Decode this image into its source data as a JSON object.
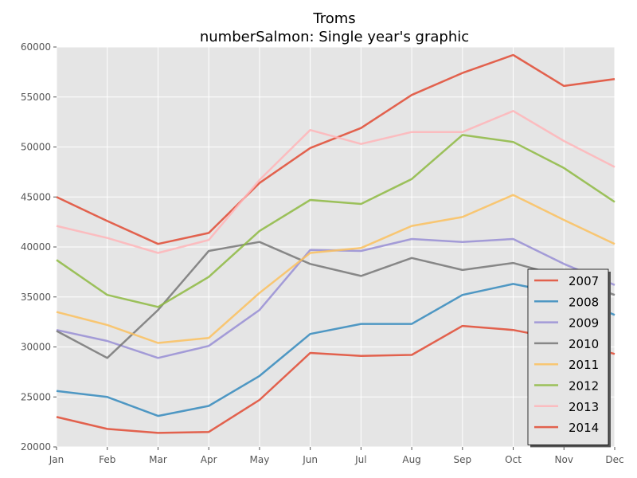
{
  "chart_data": {
    "type": "line",
    "title": "Troms",
    "subtitle": "numberSalmon: Single year's graphic",
    "xlabel": "",
    "ylabel": "",
    "categories": [
      "Jan",
      "Feb",
      "Mar",
      "Apr",
      "May",
      "Jun",
      "Jul",
      "Aug",
      "Sep",
      "Oct",
      "Nov",
      "Dec"
    ],
    "ylim": [
      20000,
      60000
    ],
    "yticks": [
      20000,
      25000,
      30000,
      35000,
      40000,
      45000,
      50000,
      55000,
      60000
    ],
    "grid": true,
    "legend_position": "bottom-right",
    "series": [
      {
        "name": "2007",
        "color": "#E24A33",
        "values": [
          45000,
          42600,
          40300,
          41400,
          46400,
          49900,
          51900,
          55200,
          57400,
          59200,
          56100,
          56800
        ]
      },
      {
        "name": "2008",
        "color": "#348ABD",
        "values": [
          25600,
          25000,
          23100,
          24100,
          27100,
          31300,
          32300,
          32300,
          35200,
          36300,
          35300,
          33200
        ]
      },
      {
        "name": "2009",
        "color": "#988ED5",
        "values": [
          31700,
          30600,
          28900,
          30100,
          33700,
          39700,
          39600,
          40800,
          40500,
          40800,
          38300,
          36200
        ]
      },
      {
        "name": "2010",
        "color": "#777777",
        "values": [
          31600,
          28900,
          33700,
          39600,
          40500,
          38300,
          37100,
          38900,
          37700,
          38400,
          37000,
          35200
        ]
      },
      {
        "name": "2011",
        "color": "#FBC15E",
        "values": [
          33500,
          32200,
          30400,
          30900,
          35400,
          39400,
          39900,
          42100,
          43000,
          45200,
          42700,
          40300
        ]
      },
      {
        "name": "2012",
        "color": "#8EBA42",
        "values": [
          38700,
          35200,
          34000,
          37000,
          41600,
          44700,
          44300,
          46800,
          51200,
          50500,
          47900,
          44500
        ]
      },
      {
        "name": "2013",
        "color": "#FFB5B8",
        "values": [
          42100,
          40900,
          39400,
          40700,
          46700,
          51700,
          50300,
          51500,
          51500,
          53600,
          50600,
          48000
        ]
      },
      {
        "name": "2014",
        "color": "#E24A33",
        "values": [
          23000,
          21800,
          21400,
          21500,
          24700,
          29400,
          29100,
          29200,
          32100,
          31700,
          30700,
          29300
        ]
      }
    ]
  }
}
